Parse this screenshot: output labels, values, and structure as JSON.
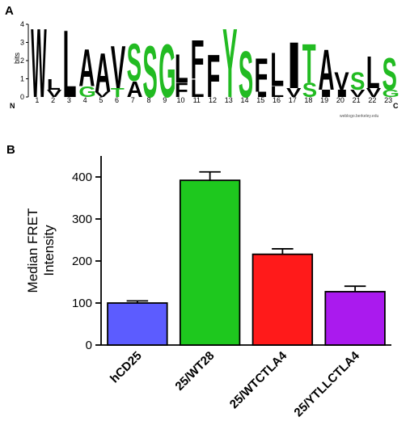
{
  "chart_data": [
    {
      "panel": "A",
      "type": "sequence-logo",
      "ylabel": "bits",
      "ylim": [
        0,
        4
      ],
      "yticks": [
        "0",
        "1",
        "2",
        "3",
        "4"
      ],
      "n_label": "N",
      "c_label": "C",
      "credit": "weblogo.berkeley.edu",
      "positions": [
        {
          "pos": "1",
          "letters": [
            {
              "char": "W",
              "bits": 3.9,
              "color": "#000000"
            }
          ]
        },
        {
          "pos": "2",
          "letters": [
            {
              "char": "L",
              "bits": 0.6,
              "color": "#000000"
            },
            {
              "char": "V",
              "bits": 0.4,
              "color": "#000000"
            }
          ]
        },
        {
          "pos": "3",
          "letters": [
            {
              "char": "L",
              "bits": 3.8,
              "color": "#000000"
            }
          ]
        },
        {
          "pos": "4",
          "letters": [
            {
              "char": "A",
              "bits": 2.1,
              "color": "#000000"
            },
            {
              "char": "G",
              "bits": 0.6,
              "color": "#22bb22"
            }
          ]
        },
        {
          "pos": "5",
          "letters": [
            {
              "char": "A",
              "bits": 2.2,
              "color": "#000000"
            },
            {
              "char": "V",
              "bits": 0.3,
              "color": "#000000"
            }
          ]
        },
        {
          "pos": "6",
          "letters": [
            {
              "char": "V",
              "bits": 2.4,
              "color": "#000000"
            },
            {
              "char": "T",
              "bits": 0.5,
              "color": "#22bb22"
            }
          ]
        },
        {
          "pos": "7",
          "letters": [
            {
              "char": "S",
              "bits": 2.1,
              "color": "#22bb22"
            },
            {
              "char": "A",
              "bits": 0.9,
              "color": "#000000"
            }
          ]
        },
        {
          "pos": "8",
          "letters": [
            {
              "char": "S",
              "bits": 2.9,
              "color": "#22bb22"
            }
          ]
        },
        {
          "pos": "9",
          "letters": [
            {
              "char": "G",
              "bits": 3.0,
              "color": "#22bb22"
            }
          ]
        },
        {
          "pos": "10",
          "letters": [
            {
              "char": "L",
              "bits": 1.6,
              "color": "#000000"
            },
            {
              "char": "F",
              "bits": 0.8,
              "color": "#000000"
            }
          ]
        },
        {
          "pos": "11",
          "letters": [
            {
              "char": "F",
              "bits": 2.2,
              "color": "#000000"
            },
            {
              "char": "L",
              "bits": 1.0,
              "color": "#000000"
            }
          ]
        },
        {
          "pos": "12",
          "letters": [
            {
              "char": "F",
              "bits": 2.4,
              "color": "#000000"
            }
          ]
        },
        {
          "pos": "13",
          "letters": [
            {
              "char": "Y",
              "bits": 3.9,
              "color": "#22bb22"
            }
          ]
        },
        {
          "pos": "14",
          "letters": [
            {
              "char": "S",
              "bits": 2.6,
              "color": "#22bb22"
            }
          ]
        },
        {
          "pos": "15",
          "letters": [
            {
              "char": "F",
              "bits": 1.9,
              "color": "#000000"
            },
            {
              "char": "I",
              "bits": 0.3,
              "color": "#000000"
            }
          ]
        },
        {
          "pos": "16",
          "letters": [
            {
              "char": "L",
              "bits": 1.9,
              "color": "#000000"
            },
            {
              "char": "L",
              "bits": 0.6,
              "color": "#000000"
            }
          ]
        },
        {
          "pos": "17",
          "letters": [
            {
              "char": "I",
              "bits": 2.6,
              "color": "#000000"
            },
            {
              "char": "V",
              "bits": 0.5,
              "color": "#000000"
            }
          ]
        },
        {
          "pos": "18",
          "letters": [
            {
              "char": "T",
              "bits": 2.2,
              "color": "#22bb22"
            },
            {
              "char": "S",
              "bits": 0.8,
              "color": "#22bb22"
            }
          ]
        },
        {
          "pos": "19",
          "letters": [
            {
              "char": "A",
              "bits": 2.3,
              "color": "#000000"
            },
            {
              "char": "I",
              "bits": 0.4,
              "color": "#000000"
            }
          ]
        },
        {
          "pos": "20",
          "letters": [
            {
              "char": "V",
              "bits": 1.0,
              "color": "#000000"
            },
            {
              "char": "I",
              "bits": 0.4,
              "color": "#000000"
            }
          ]
        },
        {
          "pos": "21",
          "letters": [
            {
              "char": "S",
              "bits": 1.0,
              "color": "#22bb22"
            },
            {
              "char": "V",
              "bits": 0.4,
              "color": "#000000"
            }
          ]
        },
        {
          "pos": "22",
          "letters": [
            {
              "char": "L",
              "bits": 1.8,
              "color": "#000000"
            },
            {
              "char": "V",
              "bits": 0.5,
              "color": "#000000"
            }
          ]
        },
        {
          "pos": "23",
          "letters": [
            {
              "char": "S",
              "bits": 1.8,
              "color": "#22bb22"
            },
            {
              "char": "G",
              "bits": 0.4,
              "color": "#22bb22"
            }
          ]
        }
      ]
    },
    {
      "panel": "B",
      "type": "bar",
      "title": "",
      "xlabel": "",
      "ylabel": "Median FRET\nIntensity",
      "ylim": [
        0,
        450
      ],
      "yticks": [
        0,
        100,
        200,
        300,
        400
      ],
      "categories": [
        "hCD25",
        "25/WT28",
        "25/WTCTLA4",
        "25/YTLLCTLA4"
      ],
      "values": [
        100,
        392,
        216,
        127
      ],
      "errors": [
        5,
        20,
        13,
        13
      ],
      "colors": [
        "#5c5cff",
        "#1ec81e",
        "#ff1a1a",
        "#aa1aee"
      ],
      "grid": false
    }
  ]
}
